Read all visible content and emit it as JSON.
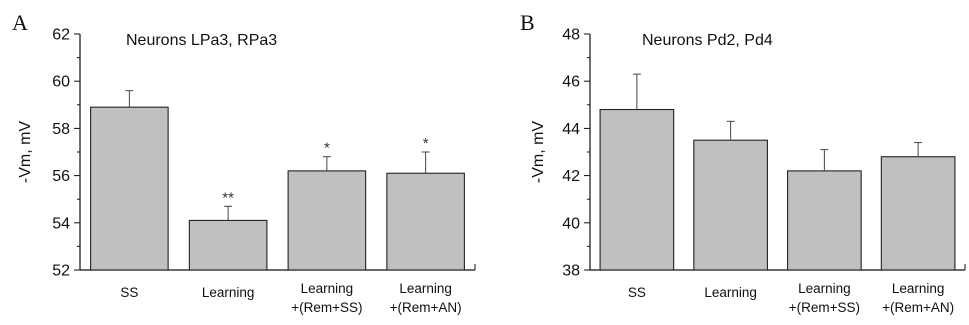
{
  "chart_data": [
    {
      "type": "bar",
      "panel_label": "A",
      "title": "Neurons LPa3, RPa3",
      "ylabel": "-Vm, mV",
      "xlabel": "",
      "ylim": [
        52,
        62
      ],
      "yticks": [
        52,
        54,
        56,
        58,
        60,
        62
      ],
      "categories": [
        [
          "SS"
        ],
        [
          "Learning"
        ],
        [
          "Learning",
          "+(Rem+SS)"
        ],
        [
          "Learning",
          "+(Rem+AN)"
        ]
      ],
      "values": [
        58.9,
        54.1,
        56.2,
        56.1
      ],
      "errors": [
        0.7,
        0.6,
        0.6,
        0.9
      ],
      "annotations": [
        "",
        "**",
        "*",
        "*"
      ],
      "bar_color": "#c0c0c0"
    },
    {
      "type": "bar",
      "panel_label": "B",
      "title": "Neurons Pd2, Pd4",
      "ylabel": "-Vm, mV",
      "xlabel": "",
      "ylim": [
        38,
        48
      ],
      "yticks": [
        38,
        40,
        42,
        44,
        46,
        48
      ],
      "categories": [
        [
          "SS"
        ],
        [
          "Learning"
        ],
        [
          "Learning",
          "+(Rem+SS)"
        ],
        [
          "Learning",
          "+(Rem+AN)"
        ]
      ],
      "values": [
        44.8,
        43.5,
        42.2,
        42.8
      ],
      "errors": [
        1.5,
        0.8,
        0.9,
        0.6
      ],
      "annotations": [
        "",
        "",
        "",
        ""
      ],
      "bar_color": "#c0c0c0"
    }
  ]
}
